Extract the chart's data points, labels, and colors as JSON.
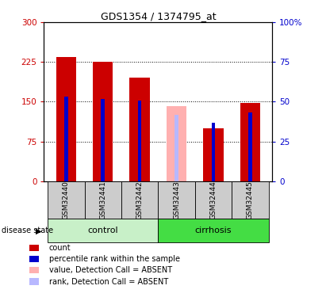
{
  "title": "GDS1354 / 1374795_at",
  "samples": [
    "GSM32440",
    "GSM32441",
    "GSM32442",
    "GSM32443",
    "GSM32444",
    "GSM32445"
  ],
  "red_bars": [
    235,
    225,
    195,
    0,
    100,
    148
  ],
  "blue_bars_left_scale": [
    160,
    155,
    152,
    0,
    110,
    130
  ],
  "pink_bar_idx": 3,
  "pink_bar_value": 142,
  "lightblue_bar_value": 125,
  "ylim_left": [
    0,
    300
  ],
  "yticks_left": [
    0,
    75,
    150,
    225,
    300
  ],
  "yticks_right": [
    0,
    25,
    50,
    75,
    100
  ],
  "ytick_labels_left": [
    "0",
    "75",
    "150",
    "225",
    "300"
  ],
  "ytick_labels_right": [
    "0",
    "25",
    "50",
    "75",
    "100%"
  ],
  "dotted_lines": [
    75,
    150,
    225
  ],
  "color_red": "#cc0000",
  "color_blue": "#0000cc",
  "color_pink": "#ffb0b0",
  "color_lightblue": "#b8b8ff",
  "color_control_bg": "#c8f0c8",
  "color_cirrhosis_bg": "#44dd44",
  "color_sample_bg": "#cccccc",
  "legend_items": [
    {
      "label": "count",
      "color": "#cc0000"
    },
    {
      "label": "percentile rank within the sample",
      "color": "#0000cc"
    },
    {
      "label": "value, Detection Call = ABSENT",
      "color": "#ffb0b0"
    },
    {
      "label": "rank, Detection Call = ABSENT",
      "color": "#b8b8ff"
    }
  ]
}
